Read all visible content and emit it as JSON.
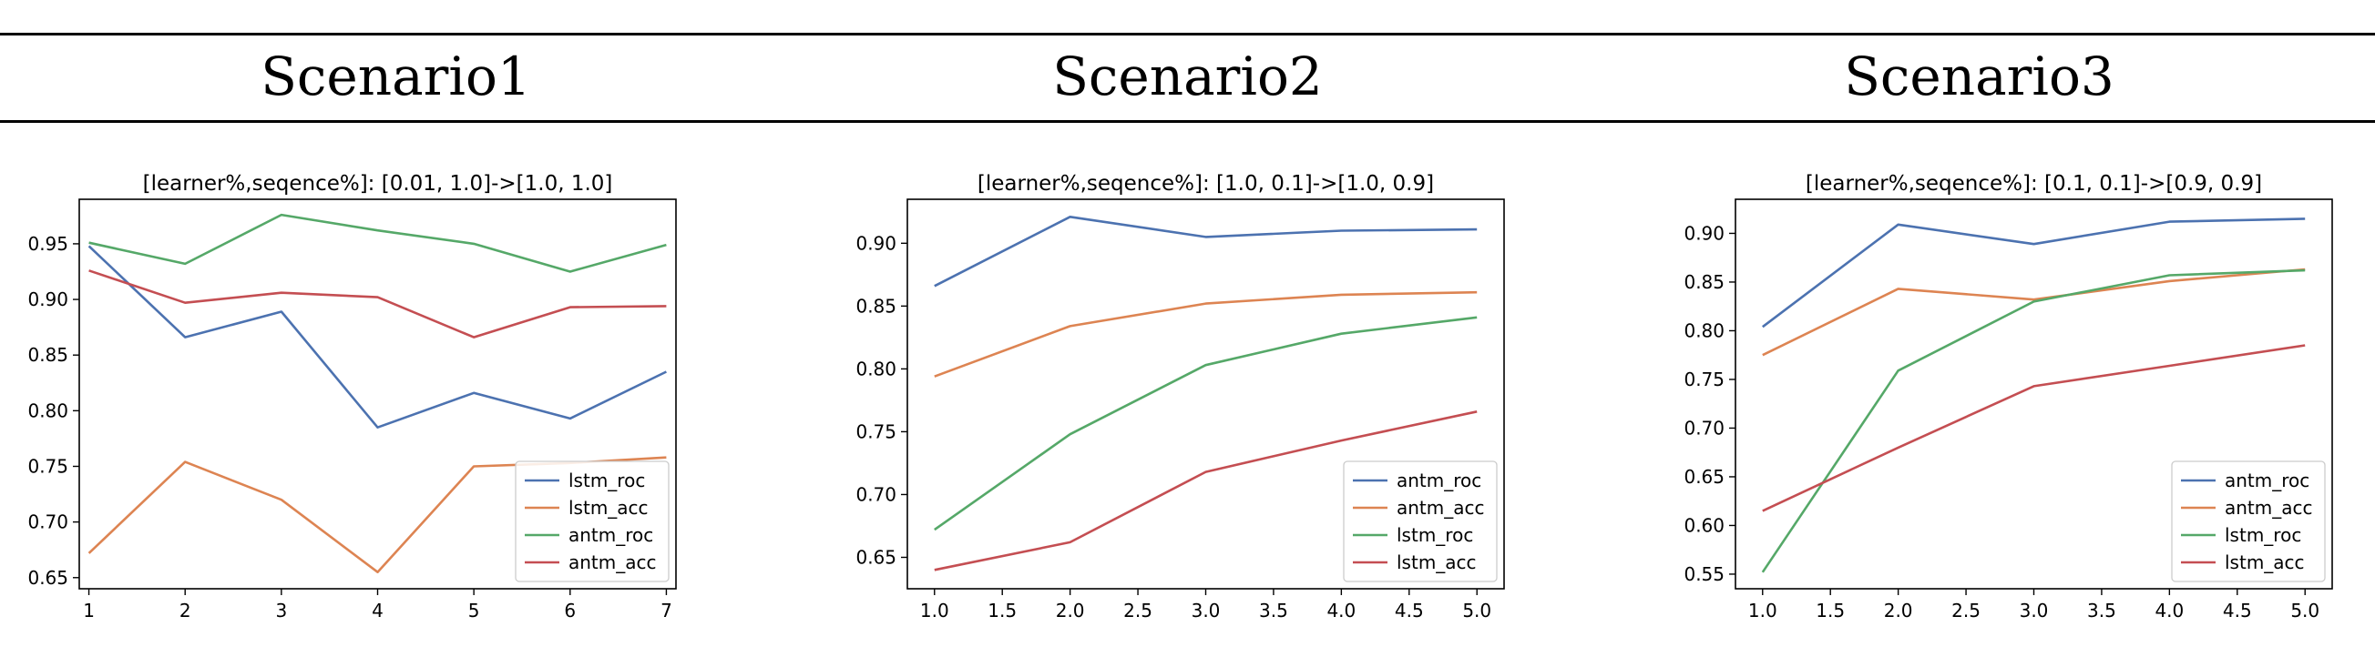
{
  "header": {
    "scenario_titles": [
      "Scenario1",
      "Scenario2",
      "Scenario3"
    ]
  },
  "colors": {
    "blue": "#4c72b0",
    "orange": "#dd8452",
    "green": "#55a868",
    "red": "#c44e52"
  },
  "chart_data": [
    {
      "type": "line",
      "title": "[learner%,seqence%]: [0.01, 1.0]->[1.0, 1.0]",
      "xlabel": "",
      "ylabel": "",
      "x": [
        1,
        2,
        3,
        4,
        5,
        6,
        7
      ],
      "xlim": [
        0.9,
        7.1
      ],
      "ylim": [
        0.64,
        0.99
      ],
      "x_ticks": [
        1,
        2,
        3,
        4,
        5,
        6,
        7
      ],
      "x_tick_labels": [
        "1",
        "2",
        "3",
        "4",
        "5",
        "6",
        "7"
      ],
      "y_ticks": [
        0.65,
        0.7,
        0.75,
        0.8,
        0.85,
        0.9,
        0.95
      ],
      "y_tick_labels": [
        "0.65",
        "0.70",
        "0.75",
        "0.80",
        "0.85",
        "0.90",
        "0.95"
      ],
      "grid": false,
      "legend_position": "lower-right",
      "series": [
        {
          "name": "lstm_roc",
          "color": "#4c72b0",
          "values": [
            0.948,
            0.866,
            0.889,
            0.785,
            0.816,
            0.793,
            0.835
          ]
        },
        {
          "name": "lstm_acc",
          "color": "#dd8452",
          "values": [
            0.672,
            0.754,
            0.72,
            0.655,
            0.75,
            0.753,
            0.758
          ]
        },
        {
          "name": "antm_roc",
          "color": "#55a868",
          "values": [
            0.951,
            0.932,
            0.976,
            0.962,
            0.95,
            0.925,
            0.949
          ]
        },
        {
          "name": "antm_acc",
          "color": "#c44e52",
          "values": [
            0.926,
            0.897,
            0.906,
            0.902,
            0.866,
            0.893,
            0.894
          ]
        }
      ]
    },
    {
      "type": "line",
      "title": "[learner%,seqence%]: [1.0, 0.1]->[1.0, 0.9]",
      "xlabel": "",
      "ylabel": "",
      "x": [
        1.0,
        2.0,
        3.0,
        4.0,
        5.0
      ],
      "xlim": [
        0.8,
        5.2
      ],
      "ylim": [
        0.625,
        0.935
      ],
      "x_ticks": [
        1.0,
        1.5,
        2.0,
        2.5,
        3.0,
        3.5,
        4.0,
        4.5,
        5.0
      ],
      "x_tick_labels": [
        "1.0",
        "1.5",
        "2.0",
        "2.5",
        "3.0",
        "3.5",
        "4.0",
        "4.5",
        "5.0"
      ],
      "y_ticks": [
        0.65,
        0.7,
        0.75,
        0.8,
        0.85,
        0.9
      ],
      "y_tick_labels": [
        "0.65",
        "0.70",
        "0.75",
        "0.80",
        "0.85",
        "0.90"
      ],
      "grid": false,
      "legend_position": "lower-right",
      "series": [
        {
          "name": "antm_roc",
          "color": "#4c72b0",
          "values": [
            0.866,
            0.921,
            0.905,
            0.91,
            0.911
          ]
        },
        {
          "name": "antm_acc",
          "color": "#dd8452",
          "values": [
            0.794,
            0.834,
            0.852,
            0.859,
            0.861
          ]
        },
        {
          "name": "lstm_roc",
          "color": "#55a868",
          "values": [
            0.672,
            0.748,
            0.803,
            0.828,
            0.841
          ]
        },
        {
          "name": "lstm_acc",
          "color": "#c44e52",
          "values": [
            0.64,
            0.662,
            0.718,
            0.743,
            0.766
          ]
        }
      ]
    },
    {
      "type": "line",
      "title": "[learner%,seqence%]: [0.1, 0.1]->[0.9, 0.9]",
      "xlabel": "",
      "ylabel": "",
      "x": [
        1.0,
        2.0,
        3.0,
        4.0,
        5.0
      ],
      "xlim": [
        0.8,
        5.2
      ],
      "ylim": [
        0.535,
        0.935
      ],
      "x_ticks": [
        1.0,
        1.5,
        2.0,
        2.5,
        3.0,
        3.5,
        4.0,
        4.5,
        5.0
      ],
      "x_tick_labels": [
        "1.0",
        "1.5",
        "2.0",
        "2.5",
        "3.0",
        "3.5",
        "4.0",
        "4.5",
        "5.0"
      ],
      "y_ticks": [
        0.55,
        0.6,
        0.65,
        0.7,
        0.75,
        0.8,
        0.85,
        0.9
      ],
      "y_tick_labels": [
        "0.55",
        "0.60",
        "0.65",
        "0.70",
        "0.75",
        "0.80",
        "0.85",
        "0.90"
      ],
      "grid": false,
      "legend_position": "lower-right",
      "series": [
        {
          "name": "antm_roc",
          "color": "#4c72b0",
          "values": [
            0.804,
            0.909,
            0.889,
            0.912,
            0.915
          ]
        },
        {
          "name": "antm_acc",
          "color": "#dd8452",
          "values": [
            0.775,
            0.843,
            0.832,
            0.851,
            0.863
          ]
        },
        {
          "name": "lstm_roc",
          "color": "#55a868",
          "values": [
            0.552,
            0.759,
            0.83,
            0.857,
            0.862
          ]
        },
        {
          "name": "lstm_acc",
          "color": "#c44e52",
          "values": [
            0.615,
            0.68,
            0.743,
            0.764,
            0.785
          ]
        }
      ]
    }
  ]
}
